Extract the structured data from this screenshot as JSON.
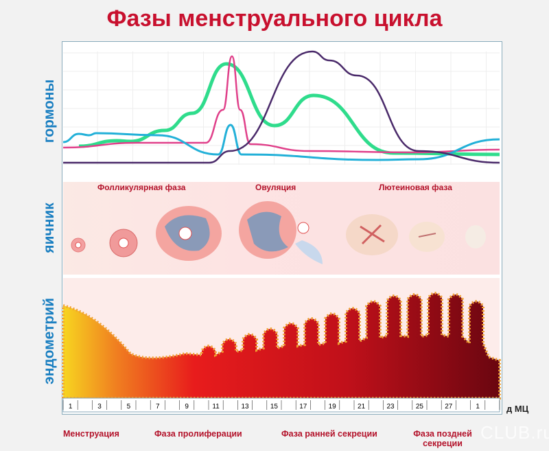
{
  "title": "Фазы менструального цикла",
  "sections": {
    "hormones": "гормоны",
    "ovary": "яичник",
    "endometrium": "эндометрий"
  },
  "ovary_phases": [
    "Фолликулярная фаза",
    "Овуляция",
    "Лютеиновая фаза"
  ],
  "axis": {
    "days": [
      "1",
      "3",
      "5",
      "7",
      "9",
      "11",
      "13",
      "15",
      "17",
      "19",
      "21",
      "23",
      "25",
      "27",
      "1"
    ],
    "unit": "д МЦ"
  },
  "cycle_phases": [
    "Менструация",
    "Фаза пролиферации",
    "Фаза ранней секреции",
    "Фаза поздней секреции"
  ],
  "watermark": "CLUB.ru",
  "colors": {
    "green": "#2fdc8c",
    "pink": "#e0408a",
    "cyan": "#22b0d8",
    "purple": "#4a2a6a",
    "title": "#c8102e",
    "label": "#1a7fc1"
  }
}
